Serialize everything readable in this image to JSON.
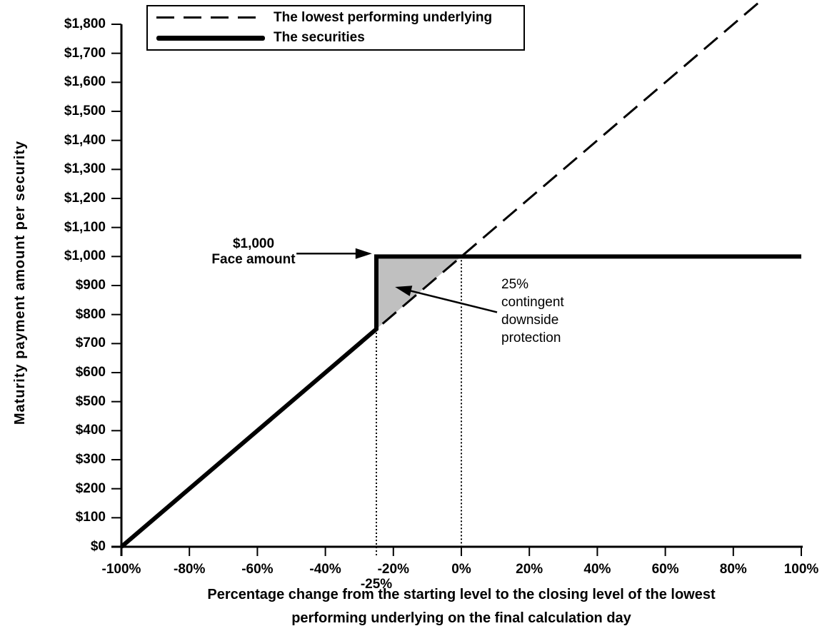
{
  "chart_data": {
    "type": "line",
    "title": "",
    "xlabel_lines": [
      "Percentage change from the starting level to the closing level of the lowest",
      "performing underlying on the final calculation day"
    ],
    "ylabel": "Maturity payment amount per security",
    "xlim": [
      -100,
      100
    ],
    "ylim": [
      0,
      1800
    ],
    "grid": false,
    "legend_position": "top-left",
    "x_ticks": [
      {
        "value": -100,
        "label": "-100%"
      },
      {
        "value": -80,
        "label": "-80%"
      },
      {
        "value": -60,
        "label": "-60%"
      },
      {
        "value": -40,
        "label": "-40%"
      },
      {
        "value": -20,
        "label": "-20%"
      },
      {
        "value": 0,
        "label": "0%"
      },
      {
        "value": 20,
        "label": "20%"
      },
      {
        "value": 40,
        "label": "40%"
      },
      {
        "value": 60,
        "label": "60%"
      },
      {
        "value": 80,
        "label": "80%"
      },
      {
        "value": 100,
        "label": "100%"
      }
    ],
    "y_ticks": [
      {
        "value": 0,
        "label": "$0"
      },
      {
        "value": 100,
        "label": "$100"
      },
      {
        "value": 200,
        "label": "$200"
      },
      {
        "value": 300,
        "label": "$300"
      },
      {
        "value": 400,
        "label": "$400"
      },
      {
        "value": 500,
        "label": "$500"
      },
      {
        "value": 600,
        "label": "$600"
      },
      {
        "value": 700,
        "label": "$700"
      },
      {
        "value": 800,
        "label": "$800"
      },
      {
        "value": 900,
        "label": "$900"
      },
      {
        "value": 1000,
        "label": "$1,000"
      },
      {
        "value": 1100,
        "label": "$1,100"
      },
      {
        "value": 1200,
        "label": "$1,200"
      },
      {
        "value": 1300,
        "label": "$1,300"
      },
      {
        "value": 1400,
        "label": "$1,400"
      },
      {
        "value": 1500,
        "label": "$1,500"
      },
      {
        "value": 1600,
        "label": "$1,600"
      },
      {
        "value": 1700,
        "label": "$1,700"
      },
      {
        "value": 1800,
        "label": "$1,800"
      }
    ],
    "series": [
      {
        "name": "The lowest performing underlying",
        "style": "dashed",
        "color": "#000000",
        "stroke_width": 3,
        "points": [
          [
            -100,
            0
          ],
          [
            88,
            1880
          ]
        ]
      },
      {
        "name": "The securities",
        "style": "solid",
        "color": "#000000",
        "stroke_width": 6,
        "points": [
          [
            -100,
            0
          ],
          [
            -25,
            750
          ],
          [
            -25,
            1000
          ],
          [
            100,
            1000
          ]
        ]
      }
    ],
    "shaded_region": {
      "color": "#c0c0c0",
      "points": [
        [
          -25,
          750
        ],
        [
          -25,
          1000
        ],
        [
          0,
          1000
        ]
      ]
    },
    "guide_lines": [
      {
        "x": -25,
        "y_from": 750,
        "label": "-25%"
      },
      {
        "x": 0,
        "y_from": 1000,
        "label": ""
      }
    ],
    "annotations": [
      {
        "id": "face-amount",
        "lines": [
          "$1,000",
          "Face amount"
        ],
        "bold": true,
        "arrow": {
          "from": [
            -48.5,
            1010
          ],
          "to": [
            -26.3,
            1010
          ]
        }
      },
      {
        "id": "downside-protection",
        "lines": [
          "25%",
          "contingent",
          "downside",
          "protection"
        ],
        "bold": false,
        "arrow": {
          "from": [
            10.5,
            808
          ],
          "to": [
            -19.5,
            895
          ]
        }
      }
    ]
  }
}
